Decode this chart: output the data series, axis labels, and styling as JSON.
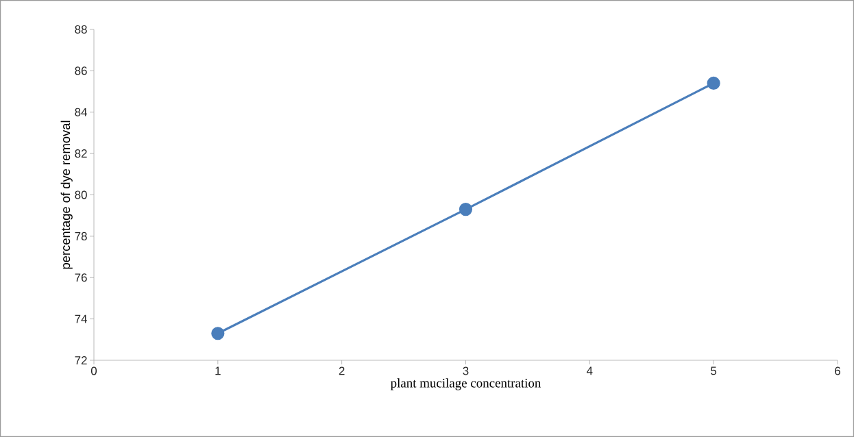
{
  "chart_data": {
    "type": "line",
    "xlabel": "plant mucilage concentration",
    "ylabel": "percentage of dye removal",
    "x": [
      1,
      3,
      5
    ],
    "series": [
      {
        "color": "#4a7ebb",
        "values": [
          73.3,
          79.3,
          85.4
        ]
      }
    ],
    "xlim": [
      0,
      6
    ],
    "xticks": [
      0,
      1,
      2,
      3,
      4,
      5,
      6
    ],
    "ylim": [
      72,
      88
    ],
    "yticks": [
      72,
      74,
      76,
      78,
      80,
      82,
      84,
      86,
      88
    ],
    "marker": "circle",
    "line_style": "solid"
  }
}
